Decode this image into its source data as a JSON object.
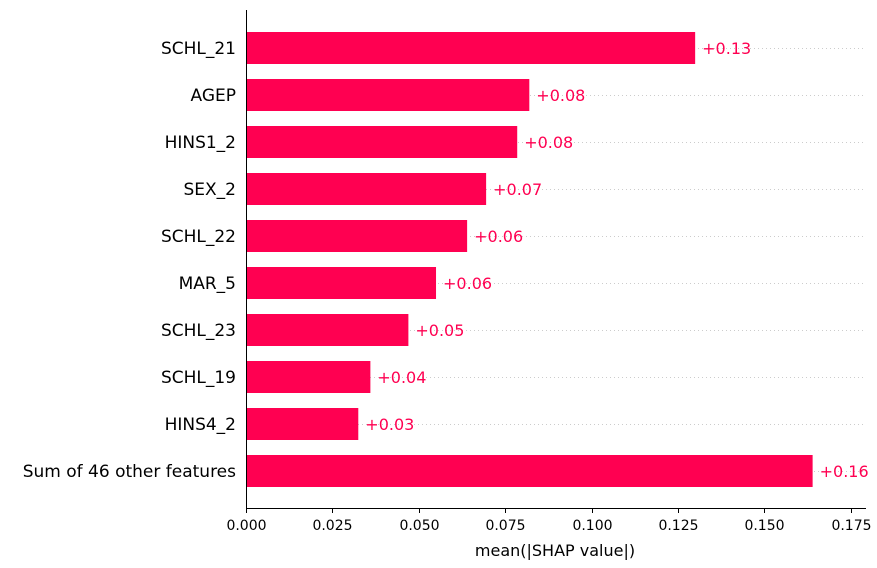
{
  "chart_data": {
    "type": "bar",
    "orientation": "horizontal",
    "categories": [
      "SCHL_21",
      "AGEP",
      "HINS1_2",
      "SEX_2",
      "SCHL_22",
      "MAR_5",
      "SCHL_23",
      "SCHL_19",
      "HINS4_2",
      "Sum of 46 other features"
    ],
    "values": [
      0.13,
      0.082,
      0.0785,
      0.0695,
      0.064,
      0.055,
      0.047,
      0.036,
      0.0325,
      0.164
    ],
    "value_labels": [
      "+0.13",
      "+0.08",
      "+0.08",
      "+0.07",
      "+0.06",
      "+0.06",
      "+0.05",
      "+0.04",
      "+0.03",
      "+0.16"
    ],
    "xlabel": "mean(|SHAP value|)",
    "xlim": [
      0,
      0.18
    ],
    "xticks": [
      0,
      0.025,
      0.05,
      0.075,
      0.1,
      0.125,
      0.15,
      0.175
    ],
    "xtick_labels": [
      "0.000",
      "0.025",
      "0.050",
      "0.075",
      "0.100",
      "0.125",
      "0.150",
      "0.175"
    ],
    "grid": "dotted horizontal guide lines per bar",
    "colors": {
      "bar": "#ff0051",
      "value_label": "#ff0051"
    }
  }
}
